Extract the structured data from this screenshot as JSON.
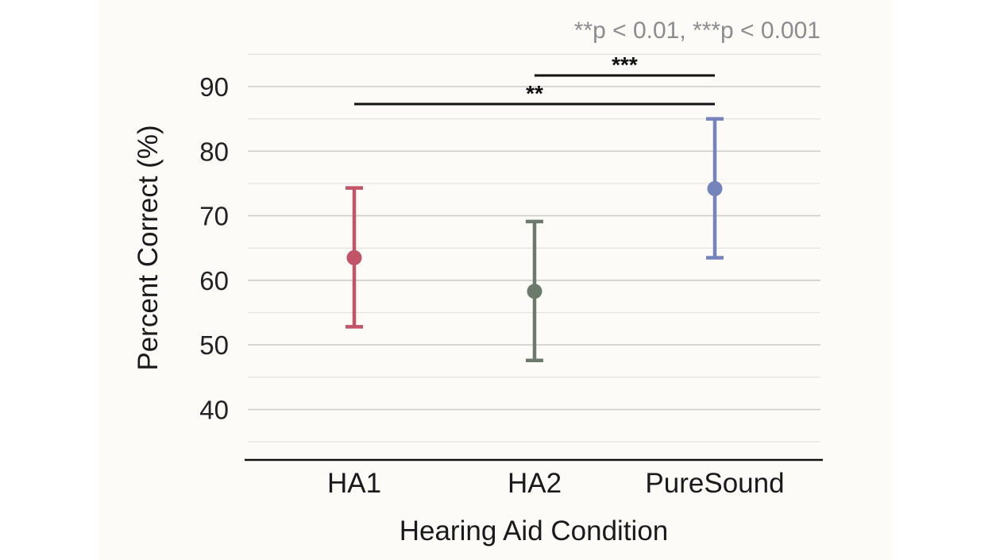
{
  "chart_data": {
    "type": "errorbar",
    "title": "",
    "xlabel": "Hearing Aid Condition",
    "ylabel": "Percent Correct (%)",
    "categories": [
      "HA1",
      "HA2",
      "PureSound"
    ],
    "means": [
      63.5,
      58.3,
      74.2
    ],
    "lower": [
      52.8,
      47.6,
      63.5
    ],
    "upper": [
      74.3,
      69.1,
      85.0
    ],
    "colors": [
      "#c25468",
      "#6b7a6a",
      "#7584bb"
    ],
    "ylim": [
      32,
      96
    ],
    "yticks": [
      40,
      50,
      60,
      70,
      80,
      90
    ],
    "minor_gridlines": [
      35,
      45,
      55,
      65,
      75,
      85,
      95
    ],
    "grid": true,
    "significance": [
      {
        "from": "HA1",
        "to": "PureSound",
        "label": "**"
      },
      {
        "from": "HA2",
        "to": "PureSound",
        "label": "***"
      }
    ],
    "annotation": "**p < 0.01, ***p < 0.001"
  }
}
